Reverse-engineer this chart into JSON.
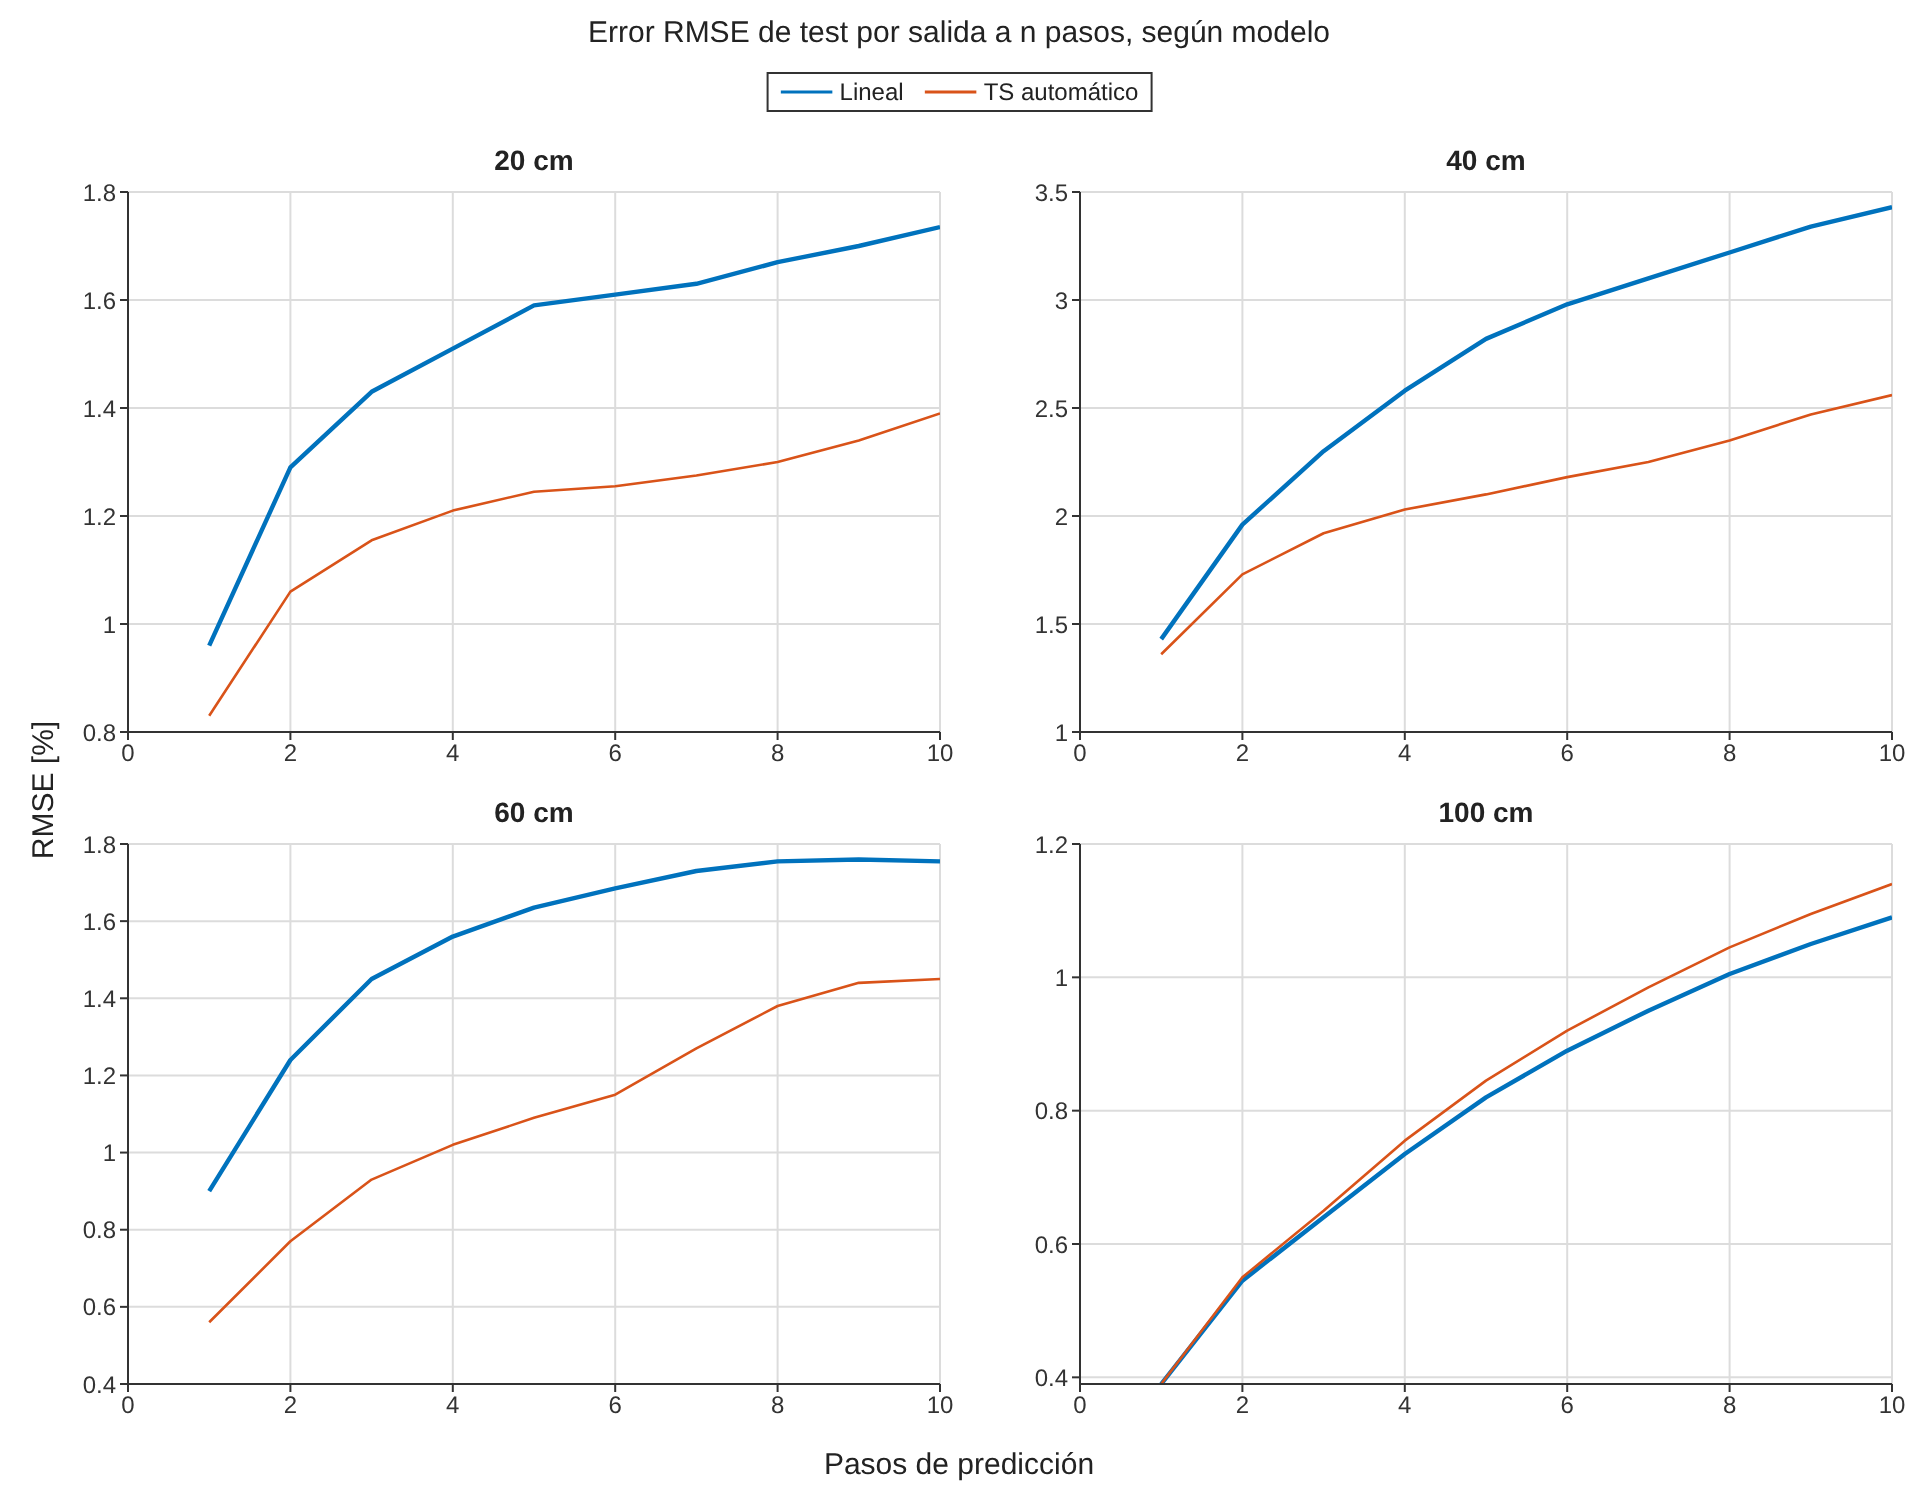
{
  "chart_data": [
    {
      "type": "line",
      "title": "20 cm",
      "annotations": [
        "Error RMSE de test por salida a n pasos, según modelo"
      ],
      "ylabel": "RMSE [%]",
      "legend": "top",
      "grid": true,
      "x": [
        1,
        2,
        3,
        4,
        5,
        6,
        7,
        8,
        9,
        10
      ],
      "xlim": [
        0,
        10
      ],
      "xticks": [
        0,
        2,
        4,
        6,
        8,
        10
      ],
      "ylim": [
        0.8,
        1.8
      ],
      "yticks": [
        0.8,
        1,
        1.2,
        1.4,
        1.6,
        1.8
      ],
      "series": [
        {
          "name": "Lineal",
          "color": "#0072bd",
          "values": [
            0.96,
            1.29,
            1.43,
            1.51,
            1.59,
            1.61,
            1.63,
            1.67,
            1.7,
            1.735
          ]
        },
        {
          "name": "TS automático",
          "color": "#d95319",
          "values": [
            0.83,
            1.06,
            1.155,
            1.21,
            1.245,
            1.255,
            1.275,
            1.3,
            1.34,
            1.39
          ]
        }
      ]
    },
    {
      "type": "line",
      "title": "40 cm",
      "grid": true,
      "x": [
        1,
        2,
        3,
        4,
        5,
        6,
        7,
        8,
        9,
        10
      ],
      "xlim": [
        0,
        10
      ],
      "xticks": [
        0,
        2,
        4,
        6,
        8,
        10
      ],
      "ylim": [
        1,
        3.5
      ],
      "yticks": [
        1,
        1.5,
        2,
        2.5,
        3,
        3.5
      ],
      "series": [
        {
          "color": "#0072bd",
          "values": [
            1.43,
            1.96,
            2.3,
            2.58,
            2.82,
            2.98,
            3.1,
            3.22,
            3.34,
            3.43
          ]
        },
        {
          "color": "#d95319",
          "values": [
            1.36,
            1.73,
            1.92,
            2.03,
            2.1,
            2.18,
            2.25,
            2.35,
            2.47,
            2.56
          ]
        }
      ]
    },
    {
      "type": "line",
      "title": "60 cm",
      "xlabel": "Pasos de predicción",
      "grid": true,
      "x": [
        1,
        2,
        3,
        4,
        5,
        6,
        7,
        8,
        9,
        10
      ],
      "xlim": [
        0,
        10
      ],
      "xticks": [
        0,
        2,
        4,
        6,
        8,
        10
      ],
      "ylim": [
        0.4,
        1.8
      ],
      "yticks": [
        0.4,
        0.6,
        0.8,
        1,
        1.2,
        1.4,
        1.6,
        1.8
      ],
      "series": [
        {
          "color": "#0072bd",
          "values": [
            0.9,
            1.24,
            1.45,
            1.56,
            1.635,
            1.685,
            1.73,
            1.755,
            1.76,
            1.755
          ]
        },
        {
          "color": "#d95319",
          "values": [
            0.56,
            0.77,
            0.93,
            1.02,
            1.09,
            1.15,
            1.27,
            1.38,
            1.44,
            1.45
          ]
        }
      ]
    },
    {
      "type": "line",
      "title": "100 cm",
      "grid": true,
      "x": [
        1,
        2,
        3,
        4,
        5,
        6,
        7,
        8,
        9,
        10
      ],
      "xlim": [
        0,
        10
      ],
      "xticks": [
        0,
        2,
        4,
        6,
        8,
        10
      ],
      "ylim": [
        0.39,
        1.2
      ],
      "yticks": [
        0.4,
        0.6,
        0.8,
        1,
        1.2
      ],
      "series": [
        {
          "color": "#0072bd",
          "values": [
            0.39,
            0.545,
            0.64,
            0.735,
            0.82,
            0.89,
            0.95,
            1.005,
            1.05,
            1.09
          ]
        },
        {
          "color": "#d95319",
          "values": [
            0.39,
            0.55,
            0.65,
            0.755,
            0.845,
            0.92,
            0.985,
            1.045,
            1.095,
            1.14
          ]
        }
      ]
    }
  ]
}
